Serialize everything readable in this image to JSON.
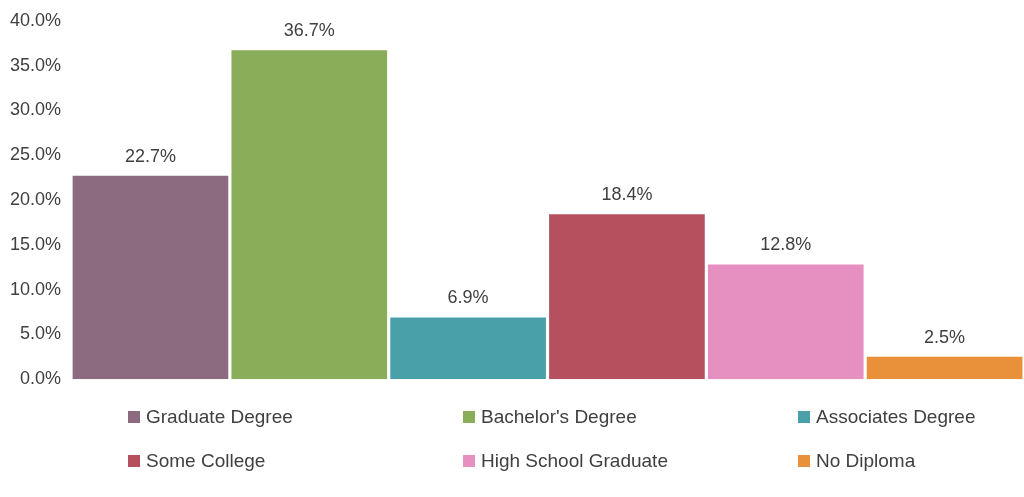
{
  "chart_data": {
    "type": "bar",
    "categories": [
      null,
      null,
      null,
      null,
      null,
      null
    ],
    "stacked": true,
    "series": [
      {
        "name": "Graduate Degree",
        "color": "#8c6b80",
        "values": [
          22.7,
          null,
          null,
          null,
          null,
          null
        ],
        "value_labels": [
          "22.7%",
          null,
          null,
          null,
          null,
          null
        ]
      },
      {
        "name": "Bachelor's Degree",
        "color": "#8aad5a",
        "values": [
          null,
          36.7,
          null,
          null,
          null,
          null
        ],
        "value_labels": [
          null,
          "36.7%",
          null,
          null,
          null,
          null
        ]
      },
      {
        "name": "Associates Degree",
        "color": "#4aa0a8",
        "values": [
          null,
          null,
          6.9,
          null,
          null,
          null
        ],
        "value_labels": [
          null,
          null,
          "6.9%",
          null,
          null,
          null
        ]
      },
      {
        "name": "Some College",
        "color": "#b5505e",
        "values": [
          null,
          null,
          null,
          18.4,
          null,
          null
        ],
        "value_labels": [
          null,
          null,
          null,
          "18.4%",
          null,
          null
        ]
      },
      {
        "name": "High School Graduate",
        "color": "#e590c0",
        "values": [
          null,
          null,
          null,
          null,
          12.8,
          null
        ],
        "value_labels": [
          null,
          null,
          null,
          null,
          "12.8%",
          null
        ]
      },
      {
        "name": "No Diploma",
        "color": "#e8903a",
        "values": [
          null,
          null,
          null,
          null,
          null,
          2.5
        ],
        "value_labels": [
          null,
          null,
          null,
          null,
          null,
          "2.5%"
        ]
      }
    ],
    "ylim": [
      0,
      40
    ],
    "yticks": [
      {
        "value": 0,
        "label": "0.0%"
      },
      {
        "value": 5,
        "label": "5.0%"
      },
      {
        "value": 10,
        "label": "10.0%"
      },
      {
        "value": 15,
        "label": "15.0%"
      },
      {
        "value": 20,
        "label": "20.0%"
      },
      {
        "value": 25,
        "label": "25.0%"
      },
      {
        "value": 30,
        "label": "30.0%"
      },
      {
        "value": 35,
        "label": "35.0%"
      },
      {
        "value": 40,
        "label": "40.0%"
      }
    ],
    "tick_labels": "y",
    "grid": false,
    "legend": "bottom"
  }
}
